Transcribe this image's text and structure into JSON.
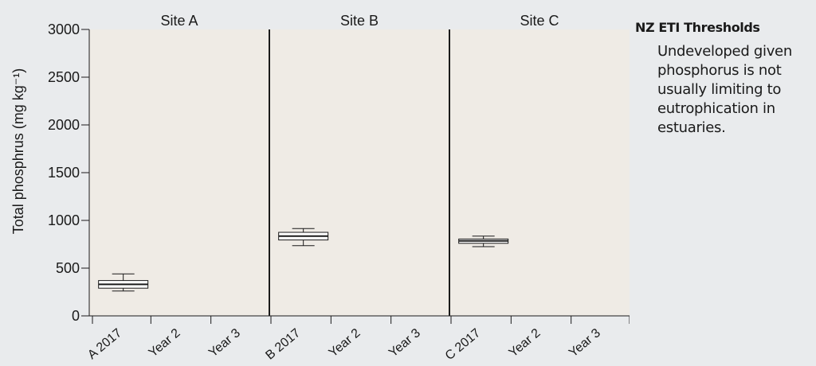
{
  "chart_data": {
    "type": "box",
    "ylabel": "Total phosphrus  (mg kg⁻¹)",
    "ylim": [
      0,
      3000
    ],
    "yticks": [
      0,
      500,
      1000,
      1500,
      2000,
      2500,
      3000
    ],
    "panels": [
      {
        "title": "Site A",
        "categories": [
          "A 2017",
          "Year 2",
          "Year 3"
        ]
      },
      {
        "title": "Site B",
        "categories": [
          "B 2017",
          "Year 2",
          "Year 3"
        ]
      },
      {
        "title": "Site C",
        "categories": [
          "C 2017",
          "Year 2",
          "Year 3"
        ]
      }
    ],
    "boxes": [
      {
        "panel": 0,
        "category": "A 2017",
        "min": 260,
        "q1": 290,
        "median": 330,
        "q3": 370,
        "max": 440
      },
      {
        "panel": 1,
        "category": "B 2017",
        "min": 735,
        "q1": 795,
        "median": 835,
        "q3": 875,
        "max": 915
      },
      {
        "panel": 2,
        "category": "C 2017",
        "min": 725,
        "q1": 760,
        "median": 785,
        "q3": 805,
        "max": 835
      }
    ],
    "plot_background": "#efebe5",
    "box_fill": "#ffffff",
    "line_color": "#1a1a1a"
  },
  "legend": {
    "title": "NZ ETI Thresholds",
    "text": "Undeveloped given phosphorus is not usually limiting to eutrophication in estuaries."
  }
}
